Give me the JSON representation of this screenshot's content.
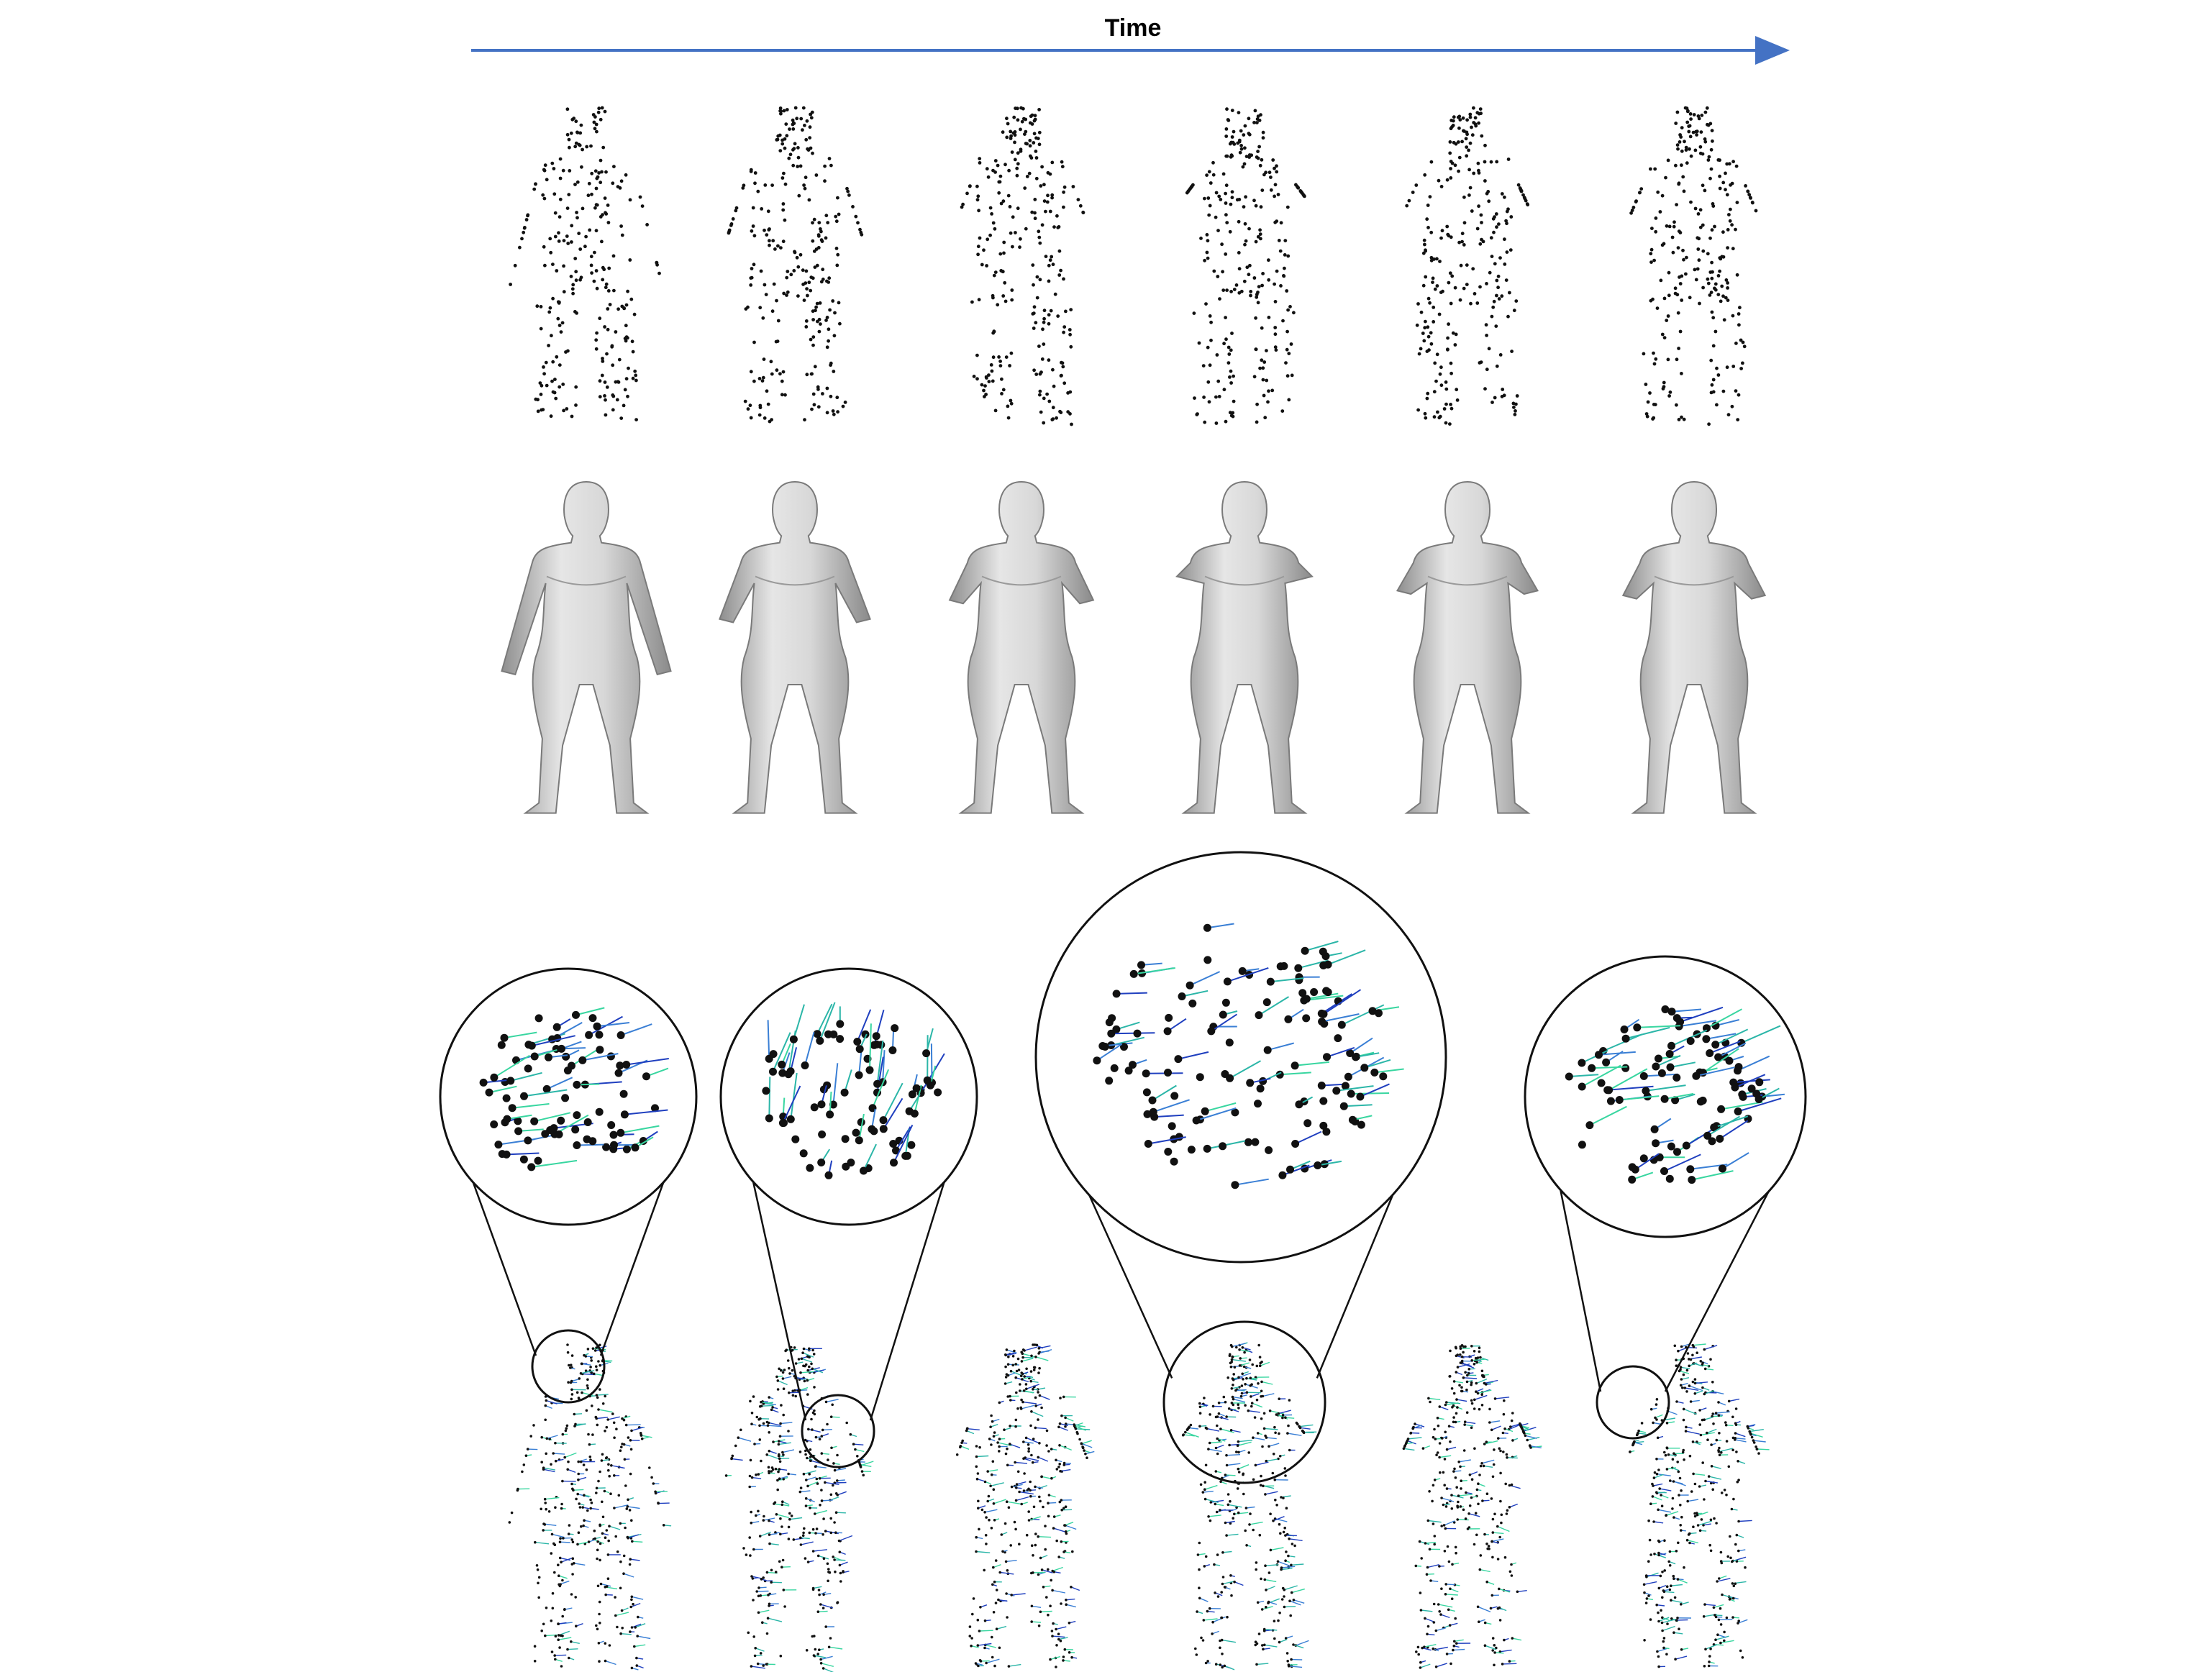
{
  "header": {
    "time_label": "Time",
    "arrow_color": "#4472c4"
  },
  "rows": [
    {
      "name": "sparse-point-cloud-row",
      "frames": 6,
      "point_color": "#111111"
    },
    {
      "name": "reconstructed-mesh-row",
      "frames": 6,
      "surface_color": "#c8c8c8"
    },
    {
      "name": "scene-flow-row",
      "frames": 6,
      "arrow_colors": [
        "#1f3fbf",
        "#3a7fd5",
        "#2bb6a8",
        "#38d6a0"
      ]
    }
  ],
  "zoom_insets": {
    "count": 4,
    "frames_zoomed": [
      1,
      2,
      4,
      6
    ]
  }
}
